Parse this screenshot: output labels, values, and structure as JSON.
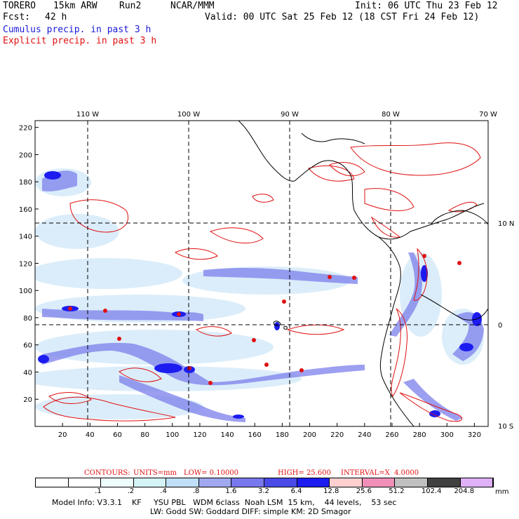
{
  "header": {
    "model": "TORERO",
    "grid": "15km ARW",
    "run": "Run2",
    "org": "NCAR/MMM",
    "init": "Init: 06 UTC Thu 23 Feb 12",
    "fcst_label": "Fcst:",
    "fcst_value": "42 h",
    "valid": "Valid: 00 UTC Sat 25 Feb 12 (18 CST Fri 24 Feb 12)",
    "cumulus": "Cumulus precip. in past 3 h",
    "explicit": "Explicit precip. in past 3 h"
  },
  "contours_line": {
    "label": "CONTOURS:",
    "units": "UNITS=mm",
    "low": "LOW= 0.10000",
    "high": "HIGH= 25.600",
    "interval": "INTERVAL=X  4.0000"
  },
  "colorbar": {
    "unit": "mm",
    "labels": [
      ".1",
      ".2",
      ".4",
      ".8",
      "1.6",
      "3.2",
      "6.4",
      "12.8",
      "25.6",
      "51.2",
      "102.4",
      "204.8"
    ],
    "colors": [
      "#ffffff",
      "#ffffff",
      "#eefcfc",
      "#d4f4f8",
      "#bfe0f8",
      "#a0a8f0",
      "#7878ee",
      "#4a4ae8",
      "#1c1cf0",
      "#ffd0d0",
      "#f090b8",
      "#c0c0c0",
      "#404040",
      "#e0b0f8"
    ]
  },
  "footer": {
    "line1": "Model Info: V3.3.1    KF     YSU PBL   WDM 6class  Noah LSM  15 km,    44 levels,    53 sec",
    "line2": "LW: Godd SW: Goddard DIFF: simple KM: 2D Smagor"
  },
  "chart_data": {
    "type": "heatmap",
    "title": "Cumulus precip. in past 3 h / Explicit precip. in past 3 h",
    "x_ticks": [
      20,
      40,
      60,
      80,
      100,
      120,
      140,
      160,
      180,
      200,
      220,
      240,
      260,
      280,
      300,
      320
    ],
    "y_ticks": [
      20,
      40,
      60,
      80,
      100,
      120,
      140,
      160,
      180,
      200,
      220
    ],
    "xlim": [
      0,
      330
    ],
    "ylim": [
      0,
      225
    ],
    "lon_labels": [
      "110 W",
      "100 W",
      "90 W",
      "80 W",
      "70 W"
    ],
    "lat_labels": [
      "10 N",
      "0",
      "10 S"
    ],
    "gridlines": "dashed lat/lon at 10 degree intervals",
    "units": "mm",
    "contour_low": 0.1,
    "contour_high": 25.6,
    "contour_interval_factor": 4.0
  }
}
